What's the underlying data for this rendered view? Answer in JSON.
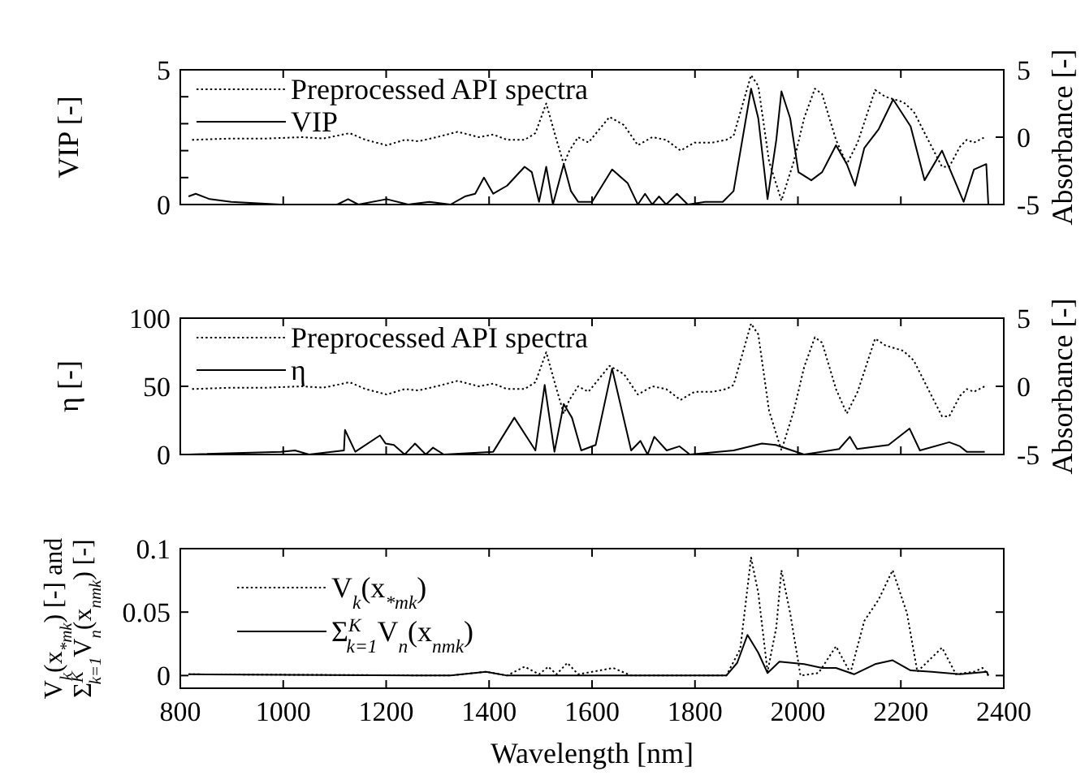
{
  "chart_data": [
    {
      "type": "line",
      "ylabel": "VIP [-]",
      "y2label": "Absorbance [-]",
      "xlim": [
        800,
        2400
      ],
      "xticks": [
        {
          "value": 800,
          "label": null
        },
        {
          "value": 1000,
          "label": null
        },
        {
          "value": 1200,
          "label": null
        },
        {
          "value": 1400,
          "label": null
        },
        {
          "value": 1600,
          "label": null
        },
        {
          "value": 1800,
          "label": null
        },
        {
          "value": 2000,
          "label": null
        },
        {
          "value": 2200,
          "label": null
        },
        {
          "value": 2400,
          "label": null
        }
      ],
      "ylim": [
        0,
        5
      ],
      "yticks": [
        0,
        {
          "value": 1,
          "label": null
        },
        {
          "value": 2,
          "label": null
        },
        {
          "value": 3,
          "label": null
        },
        {
          "value": 4,
          "label": null
        },
        5
      ],
      "y2lim": [
        -5,
        5
      ],
      "y2ticks": [
        -5,
        0,
        5
      ],
      "tick_labels": "y",
      "grid": false,
      "legend": "top left",
      "series": [
        {
          "name": "Preprocessed API spectra",
          "color": "#000000",
          "axis": "y2",
          "line_style": "dotted",
          "x": [
            823,
            899,
            968,
            1036,
            1078,
            1129,
            1160,
            1201,
            1236,
            1263,
            1298,
            1339,
            1380,
            1408,
            1435,
            1469,
            1490,
            1511,
            1531,
            1545,
            1556,
            1573,
            1593,
            1634,
            1662,
            1689,
            1717,
            1744,
            1772,
            1799,
            1834,
            1861,
            1875,
            1909,
            1923,
            1944,
            1968,
            1992,
            2012,
            2033,
            2047,
            2074,
            2095,
            2116,
            2150,
            2170,
            2205,
            2225,
            2253,
            2280,
            2294,
            2315,
            2328,
            2342,
            2363
          ],
          "values": [
            -0.2,
            -0.1,
            -0.1,
            0,
            -0.1,
            0.3,
            -0.2,
            -0.6,
            -0.2,
            -0.3,
            0,
            0.4,
            0,
            0.2,
            -0.2,
            -0.2,
            0.3,
            2.5,
            -0.2,
            -2,
            -1,
            0,
            -0.4,
            1.5,
            0.9,
            -0.6,
            0,
            -0.2,
            -1,
            -0.4,
            -0.4,
            -0.2,
            0.1,
            4.6,
            3.8,
            -1.8,
            -4.7,
            -1.8,
            1.4,
            3.6,
            3.2,
            -0.2,
            -2,
            -0.4,
            3.5,
            3,
            2.6,
            1.9,
            -0.2,
            -2.2,
            -2.2,
            -0.7,
            -0.2,
            -0.4,
            0
          ]
        },
        {
          "name": "VIP",
          "color": "#000000",
          "line_style": "solid",
          "x": [
            816,
            830,
            857,
            899,
            995,
            1050,
            1105,
            1126,
            1146,
            1201,
            1243,
            1284,
            1325,
            1353,
            1373,
            1390,
            1408,
            1435,
            1469,
            1483,
            1497,
            1511,
            1524,
            1545,
            1559,
            1573,
            1600,
            1639,
            1669,
            1689,
            1703,
            1717,
            1730,
            1744,
            1765,
            1786,
            1820,
            1854,
            1875,
            1909,
            1923,
            1941,
            1958,
            1968,
            1985,
            2001,
            2026,
            2047,
            2074,
            2095,
            2111,
            2129,
            2157,
            2185,
            2219,
            2246,
            2280,
            2322,
            2342,
            2366,
            2370
          ],
          "values": [
            0.3,
            0.4,
            0.2,
            0.1,
            0,
            0,
            0,
            0.2,
            0,
            0.2,
            0,
            0.1,
            0,
            0.3,
            0.4,
            1,
            0.4,
            0.7,
            1.4,
            1.2,
            0.1,
            1.4,
            0,
            1.5,
            0.5,
            0.1,
            0.1,
            1.3,
            0.8,
            0,
            0.4,
            0,
            0.3,
            0,
            0.4,
            0,
            0.1,
            0.1,
            0.5,
            4.3,
            3.2,
            0.2,
            2.4,
            4.2,
            3.2,
            1.2,
            0.9,
            1.2,
            2.2,
            1.5,
            0.7,
            2.1,
            2.8,
            3.9,
            2.9,
            0.9,
            2,
            0.1,
            1.3,
            1.5,
            0
          ]
        }
      ]
    },
    {
      "type": "line",
      "ylabel": "η [-]",
      "y2label": "Absorbance [-]",
      "xlim": [
        800,
        2400
      ],
      "xticks": [
        {
          "value": 800,
          "label": null
        },
        {
          "value": 1000,
          "label": null
        },
        {
          "value": 1200,
          "label": null
        },
        {
          "value": 1400,
          "label": null
        },
        {
          "value": 1600,
          "label": null
        },
        {
          "value": 1800,
          "label": null
        },
        {
          "value": 2000,
          "label": null
        },
        {
          "value": 2200,
          "label": null
        },
        {
          "value": 2400,
          "label": null
        }
      ],
      "ylim": [
        0,
        100
      ],
      "yticks": [
        0,
        50,
        100
      ],
      "y2lim": [
        -5,
        5
      ],
      "y2ticks": [
        -5,
        0,
        5
      ],
      "tick_labels": "y",
      "grid": false,
      "legend": "top left",
      "series": [
        {
          "name": "Preprocessed API spectra",
          "color": "#000000",
          "axis": "y2",
          "line_style": "dotted",
          "x": [
            823,
            899,
            968,
            1036,
            1078,
            1129,
            1160,
            1201,
            1236,
            1263,
            1298,
            1339,
            1380,
            1408,
            1435,
            1469,
            1490,
            1511,
            1531,
            1545,
            1556,
            1573,
            1593,
            1634,
            1662,
            1689,
            1717,
            1744,
            1772,
            1799,
            1834,
            1861,
            1875,
            1909,
            1923,
            1944,
            1968,
            1992,
            2012,
            2033,
            2047,
            2074,
            2095,
            2116,
            2150,
            2170,
            2205,
            2225,
            2253,
            2280,
            2294,
            2315,
            2328,
            2342,
            2363
          ],
          "values": [
            -0.2,
            -0.1,
            -0.1,
            0,
            -0.1,
            0.3,
            -0.2,
            -0.6,
            -0.2,
            -0.3,
            0,
            0.4,
            0,
            0.2,
            -0.2,
            -0.2,
            0.3,
            2.5,
            -0.2,
            -2,
            -1,
            0,
            -0.4,
            1.5,
            0.9,
            -0.6,
            0,
            -0.2,
            -1,
            -0.4,
            -0.4,
            -0.2,
            0.1,
            4.6,
            3.8,
            -1.8,
            -4.7,
            -1.8,
            1.4,
            3.6,
            3.2,
            -0.2,
            -2,
            -0.4,
            3.5,
            3,
            2.6,
            1.9,
            -0.2,
            -2.2,
            -2.2,
            -0.7,
            -0.2,
            -0.4,
            0
          ]
        },
        {
          "name": "η",
          "color": "#000000",
          "line_style": "solid",
          "x": [
            816,
            995,
            1023,
            1050,
            1118,
            1120,
            1140,
            1188,
            1199,
            1215,
            1236,
            1256,
            1277,
            1291,
            1312,
            1408,
            1449,
            1490,
            1508,
            1527,
            1545,
            1561,
            1579,
            1607,
            1639,
            1655,
            1676,
            1694,
            1708,
            1721,
            1745,
            1770,
            1790,
            1875,
            1930,
            1957,
            2012,
            2080,
            2101,
            2115,
            2176,
            2217,
            2237,
            2294,
            2315,
            2328,
            2363
          ],
          "values": [
            0,
            2,
            3,
            0,
            3,
            18,
            2,
            14,
            8,
            7,
            0,
            8,
            0,
            5,
            0,
            2,
            27,
            3,
            51,
            2,
            37,
            27,
            3,
            7,
            63,
            37,
            3,
            10,
            0,
            13,
            3,
            6,
            0,
            3,
            8,
            7,
            0,
            4,
            13,
            4,
            7,
            19,
            3,
            9,
            6,
            2,
            2
          ]
        }
      ]
    },
    {
      "type": "line",
      "ylabel": "V$_{k}$(x$_{*mk}$) [-] and\nΣ$^{K}$$_{k=1}$V$_{n}$(x$_{nmk}$) [-]",
      "xlabel": "Wavelength [nm]",
      "xlim": [
        800,
        2400
      ],
      "xticks": [
        800,
        1000,
        1200,
        1400,
        1600,
        1800,
        2000,
        2200,
        2400
      ],
      "ylim": [
        -0.01,
        0.1
      ],
      "yticks": [
        0,
        0.05,
        0.1
      ],
      "grid": false,
      "legend": "top left",
      "series": [
        {
          "name": "V$_{k}$(x$_{*mk}$)",
          "color": "#000000",
          "line_style": "dotted",
          "x": [
            816,
            1325,
            1394,
            1435,
            1469,
            1497,
            1515,
            1531,
            1552,
            1573,
            1641,
            1676,
            1861,
            1888,
            1909,
            1923,
            1941,
            1958,
            1968,
            1985,
            2005,
            2040,
            2074,
            2102,
            2129,
            2157,
            2184,
            2212,
            2232,
            2280,
            2307,
            2342,
            2359,
            2370
          ],
          "values": [
            0.001,
            0,
            0.003,
            0,
            0.007,
            0.001,
            0.007,
            0.001,
            0.01,
            0.001,
            0.006,
            0,
            0,
            0.021,
            0.093,
            0.065,
            0.003,
            0.038,
            0.083,
            0.049,
            0,
            0.002,
            0.023,
            0.002,
            0.043,
            0.06,
            0.083,
            0.049,
            0.003,
            0.022,
            0.001,
            0.003,
            0.006,
            0
          ]
        },
        {
          "name": "Σ$^{K}$$_{k=1}$V$_{n}$(x$_{nmk}$)",
          "color": "#000000",
          "line_style": "solid",
          "x": [
            816,
            1325,
            1394,
            1435,
            1861,
            1882,
            1902,
            1923,
            1941,
            1964,
            2012,
            2047,
            2074,
            2109,
            2150,
            2184,
            2219,
            2260,
            2315,
            2367,
            2370
          ],
          "values": [
            0.001,
            0,
            0.003,
            0,
            0,
            0.01,
            0.032,
            0.018,
            0.002,
            0.011,
            0.009,
            0.006,
            0.006,
            0.001,
            0.009,
            0.012,
            0.004,
            0.003,
            0.001,
            0.003,
            0
          ]
        }
      ]
    }
  ]
}
